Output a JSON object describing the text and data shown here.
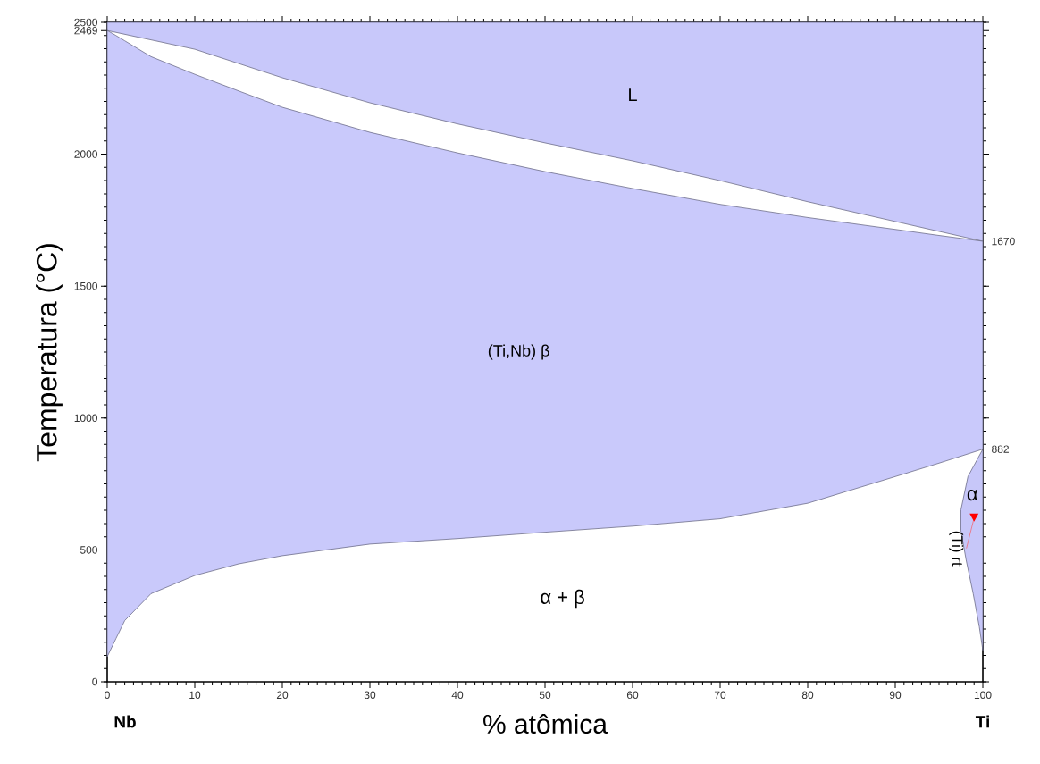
{
  "chart_data": {
    "type": "area",
    "xlabel": "% atômica",
    "ylabel": "Temperatura (°C)",
    "xlim": [
      0,
      100
    ],
    "ylim": [
      0,
      2500
    ],
    "xticks": [
      0,
      10,
      20,
      30,
      40,
      50,
      60,
      70,
      80,
      90,
      100
    ],
    "yticks": [
      0,
      500,
      1000,
      1500,
      2000,
      2469,
      2500
    ],
    "y2lim": [
      0,
      2500
    ],
    "y2ticks": [
      882,
      1670
    ],
    "grid": false,
    "marker": "none",
    "line_style": "solid",
    "series": [
      {
        "color": "#c8c8fa",
        "x": [
          0,
          10,
          20,
          30,
          40,
          50,
          60,
          70,
          80,
          90,
          100,
          100,
          0
        ],
        "values": [
          2469,
          2398,
          2290,
          2195,
          2115,
          2043,
          1975,
          1900,
          1820,
          1745,
          1670,
          2500,
          2500
        ]
      },
      {
        "color": "#c9c9fb",
        "x": [
          0,
          1,
          2,
          5,
          10,
          15,
          20,
          30,
          40,
          50,
          60,
          70,
          80,
          90,
          95,
          100,
          100,
          95,
          90,
          80,
          70,
          60,
          50,
          40,
          30,
          20,
          15,
          10,
          5,
          2,
          1,
          0
        ],
        "values": [
          2469,
          2450,
          2430,
          2370,
          2303,
          2240,
          2178,
          2083,
          2005,
          1934,
          1870,
          1810,
          1760,
          1715,
          1692,
          1670,
          882,
          829,
          778,
          677,
          618,
          590,
          567,
          543,
          522,
          478,
          447,
          403,
          334,
          232,
          164,
          95
        ]
      },
      {
        "color": "#c7c7f9",
        "x": [
          100,
          98.3,
          97.5,
          97.5,
          98.1,
          98.9,
          99.6,
          100
        ],
        "values": [
          882,
          778,
          652,
          573,
          461,
          334,
          208,
          119
        ]
      }
    ],
    "annotations": [
      "L",
      "(Ti,Nb) β",
      "α + β",
      "α",
      {
        "text": "(Ti) rt",
        "x": 99,
        "y": 621
      },
      "Nb",
      "Ti"
    ]
  }
}
